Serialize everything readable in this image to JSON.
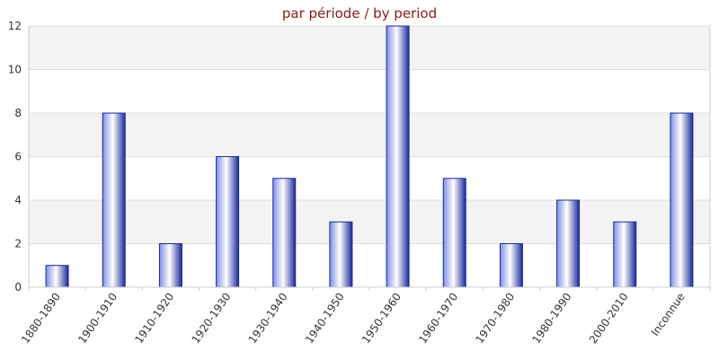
{
  "chart_data": {
    "type": "bar",
    "title": "par période / by period",
    "xlabel": "",
    "ylabel": "",
    "categories": [
      "1880-1890",
      "1900-1910",
      "1910-1920",
      "1920-1930",
      "1930-1940",
      "1940-1950",
      "1950-1960",
      "1960-1970",
      "1970-1980",
      "1980-1990",
      "2000-2010",
      "Inconnue"
    ],
    "values": [
      1,
      8,
      2,
      6,
      5,
      3,
      12,
      5,
      2,
      4,
      3,
      8
    ],
    "ylim": [
      0,
      12
    ],
    "yticks": [
      0,
      2,
      4,
      6,
      8,
      10,
      12
    ],
    "grid": true,
    "legend": "none",
    "colors": {
      "bar_dark": "#1a2a9a",
      "bar_mid": "#7f8fe6",
      "bar_light": "#ffffff",
      "title": "#8b1a1a",
      "band": "#f3f3f3",
      "grid": "#dddddd",
      "axis": "#cccccc"
    }
  }
}
